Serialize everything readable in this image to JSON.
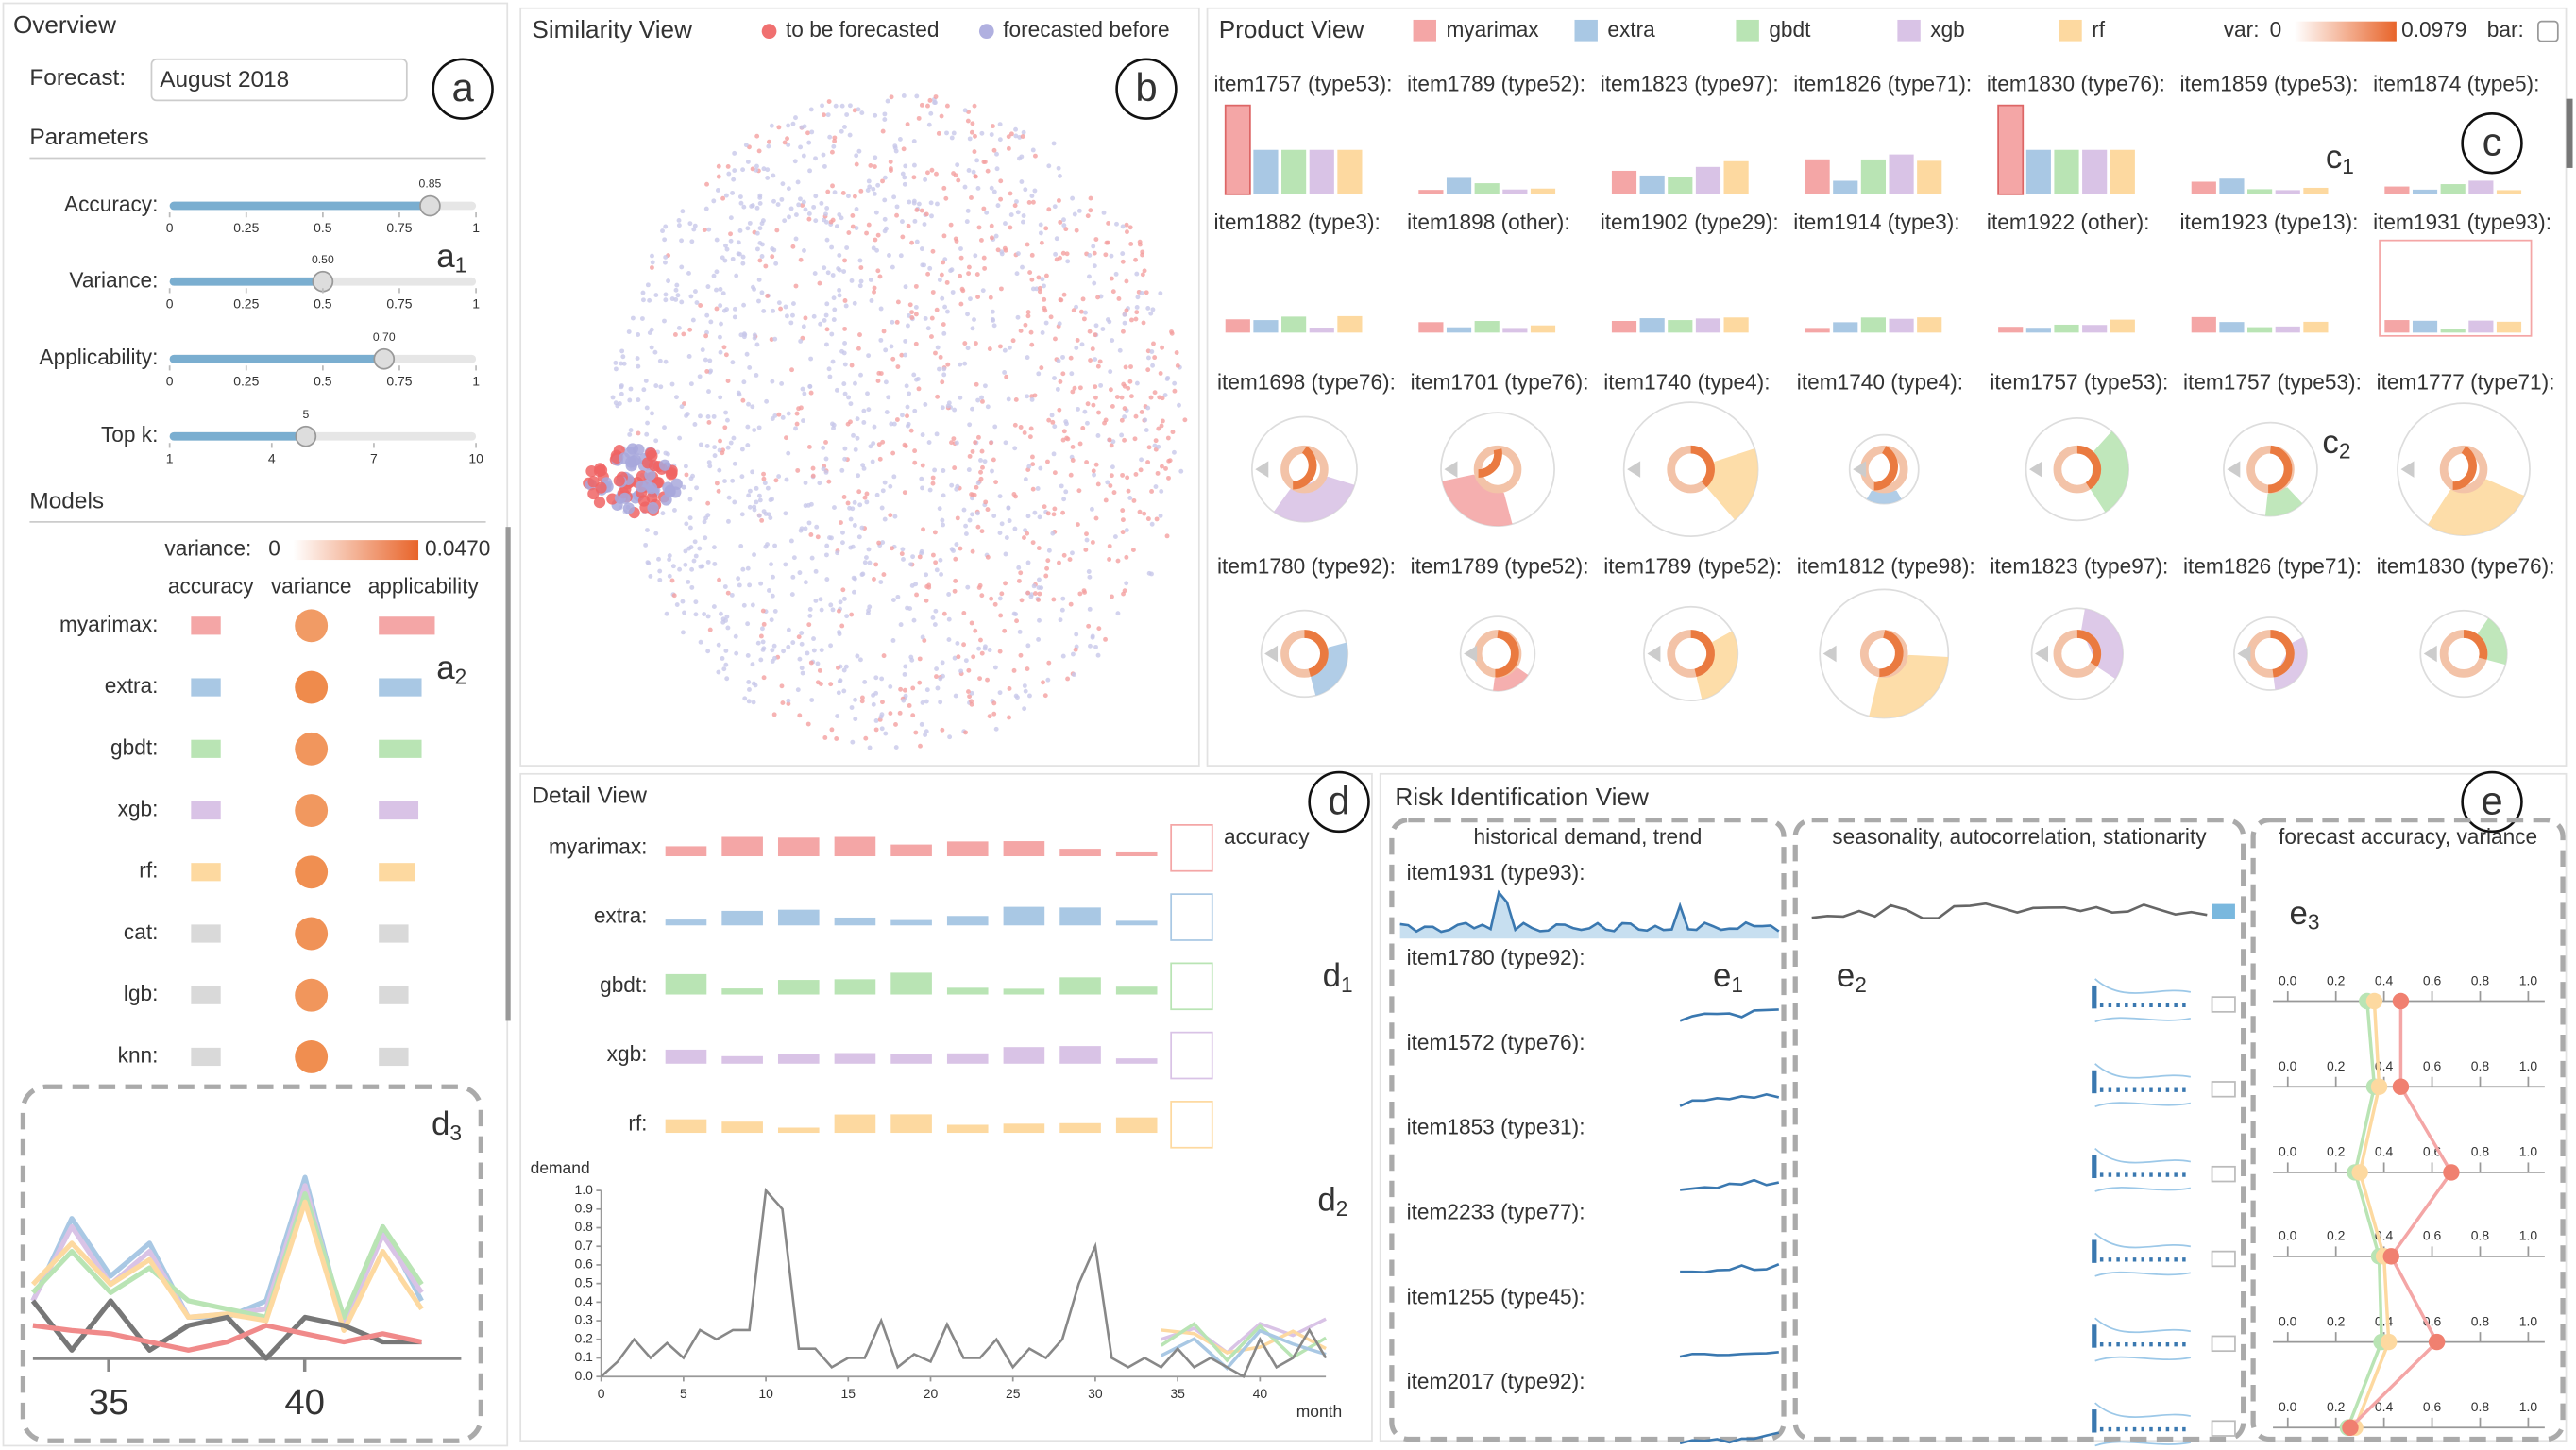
{
  "colors": [
    "#f4a6a6",
    "#a9c8e4",
    "#b9e4b4",
    "#d9c3e6",
    "#fdd9a0",
    "#d9d9d9",
    "#d9d9d9",
    "#d9d9d9"
  ],
  "overview": {
    "title": "Overview",
    "forecast_label": "Forecast:",
    "forecast_value": "August 2018",
    "parameters_title": "Parameters",
    "sliders": [
      {
        "label": "Accuracy:",
        "value": 0.85,
        "value_label": "0.85",
        "ticks": [
          0,
          0.25,
          0.5,
          0.75,
          1
        ]
      },
      {
        "label": "Variance:",
        "value": 0.5,
        "value_label": "0.50",
        "ticks": [
          0,
          0.25,
          0.5,
          0.75,
          1
        ]
      },
      {
        "label": "Applicability:",
        "value": 0.7,
        "value_label": "0.70",
        "ticks": [
          0,
          0.25,
          0.5,
          0.75,
          1
        ]
      },
      {
        "label": "Top k:",
        "value": 5,
        "value_label": "5",
        "ticks": [
          1,
          4,
          7,
          10
        ]
      }
    ],
    "models_title": "Models",
    "variance_label": "variance:",
    "variance_range": [
      0,
      {
        "value": 0.047,
        "label": "0.0470"
      }
    ],
    "columns": [
      "accuracy",
      "variance",
      "applicability"
    ],
    "models": [
      "myarimax:",
      "extra:",
      "gbdt:",
      "xgb:",
      "rf:",
      "cat:",
      "lgb:",
      "knn:"
    ],
    "d3_xticks": [
      35,
      40
    ]
  },
  "badges": [
    "a",
    "b",
    "c",
    "d",
    "e"
  ],
  "annotations": [
    {
      "letter": "a",
      "sub": "1"
    },
    {
      "letter": "a",
      "sub": "2"
    },
    {
      "letter": "d",
      "sub": "3"
    },
    {
      "letter": "c",
      "sub": "1"
    },
    {
      "letter": "c",
      "sub": "2"
    },
    {
      "letter": "d",
      "sub": "1"
    },
    {
      "letter": "d",
      "sub": "2"
    },
    {
      "letter": "e",
      "sub": "1"
    },
    {
      "letter": "e",
      "sub": "2"
    },
    {
      "letter": "e",
      "sub": "3"
    }
  ],
  "similarity": {
    "title": "Similarity View",
    "legend": [
      "to be forecasted",
      "forecasted before"
    ]
  },
  "product": {
    "title": "Product View",
    "legend": [
      "myarimax",
      "extra",
      "gbdt",
      "xgb",
      "rf"
    ],
    "var_label": "var:",
    "var_range": [
      0,
      0.0979
    ],
    "bar_label": "bar:",
    "items": [
      [
        "item1757 (type53):",
        "item1789 (type52):",
        "item1823 (type97):",
        "item1826 (type71):",
        "item1830 (type76):",
        "item1859 (type53):",
        "item1874 (type5):"
      ],
      [
        "item1882 (type3):",
        "item1898 (other):",
        "item1902 (type29):",
        "item1914 (type3):",
        "item1922 (other):",
        "item1923 (type13):",
        "item1931 (type93):"
      ],
      [
        "item1698 (type76):",
        "item1701 (type76):",
        "item1740 (type4):",
        "item1740 (type4):",
        "item1757 (type53):",
        "item1757 (type53):",
        "item1777 (type71):"
      ],
      [
        "item1780 (type92):",
        "item1789 (type52):",
        "item1789 (type52):",
        "item1812 (type98):",
        "item1823 (type97):",
        "item1826 (type71):",
        "item1830 (type76):"
      ]
    ]
  },
  "detail": {
    "title": "Detail View",
    "models": [
      "myarimax:",
      "extra:",
      "gbdt:",
      "xgb:",
      "rf:"
    ],
    "accuracy_label": "accuracy",
    "y_label": "demand",
    "x_label": "month",
    "yticks": [
      {
        "value": 0,
        "label": "0.0"
      },
      {
        "value": 0.1,
        "label": "0.1"
      },
      {
        "value": 0.2,
        "label": "0.2"
      },
      {
        "value": 0.3,
        "label": "0.3"
      },
      {
        "value": 0.4,
        "label": "0.4"
      },
      {
        "value": 0.5,
        "label": "0.5"
      },
      {
        "value": 0.6,
        "label": "0.6"
      },
      {
        "value": 0.7,
        "label": "0.7"
      },
      {
        "value": 0.8,
        "label": "0.8"
      },
      {
        "value": 0.9,
        "label": "0.9"
      },
      {
        "value": 1,
        "label": "1.0"
      }
    ],
    "ylim": [
      0,
      1
    ],
    "xlim": [
      0,
      44
    ],
    "xticks": [
      0,
      5,
      10,
      15,
      20,
      25,
      30,
      35,
      40
    ],
    "months": [
      0,
      1,
      2,
      3,
      4,
      5,
      6,
      7,
      8,
      9,
      10,
      11,
      12,
      13,
      14,
      15,
      16,
      17,
      18,
      19,
      20,
      21,
      22,
      23,
      24,
      25,
      26,
      27,
      28,
      29,
      30,
      31,
      32,
      33,
      34,
      35,
      36,
      37,
      38,
      39,
      40,
      41,
      42,
      43,
      44
    ],
    "demand": [
      0,
      0.08,
      0.2,
      0.1,
      0.18,
      0.1,
      0.25,
      0.2,
      0.25,
      0.25,
      1,
      0.9,
      0.15,
      0.15,
      0.05,
      0.1,
      0.1,
      0.3,
      0.05,
      0.12,
      0.08,
      0.28,
      0.1,
      0.1,
      0.2,
      0.05,
      0.15,
      0.1,
      0.2,
      0.5,
      0.7,
      0.1,
      0.05,
      0.1,
      0.05,
      0.15,
      0.05,
      0.1,
      0.05,
      0,
      0.2,
      0.05,
      0.1,
      0.25,
      0.1
    ]
  },
  "risk": {
    "title": "Risk Identification View",
    "sections": [
      "historical demand, trend",
      "seasonality, autocorrelation, stationarity",
      "forecast accuracy, variance"
    ],
    "items": [
      "item1931 (type93):",
      "item1780 (type92):",
      "item1572 (type76):",
      "item1853 (type31):",
      "item2233 (type77):",
      "item1255 (type45):",
      "item2017 (type92):"
    ],
    "accuracy_ticks": [
      {
        "value": 0,
        "label": "0.0"
      },
      {
        "value": 0.2,
        "label": "0.2"
      },
      {
        "value": 0.4,
        "label": "0.4"
      },
      {
        "value": 0.6,
        "label": "0.6"
      },
      {
        "value": 0.8,
        "label": "0.8"
      },
      {
        "value": 1,
        "label": "1.0"
      }
    ]
  }
}
